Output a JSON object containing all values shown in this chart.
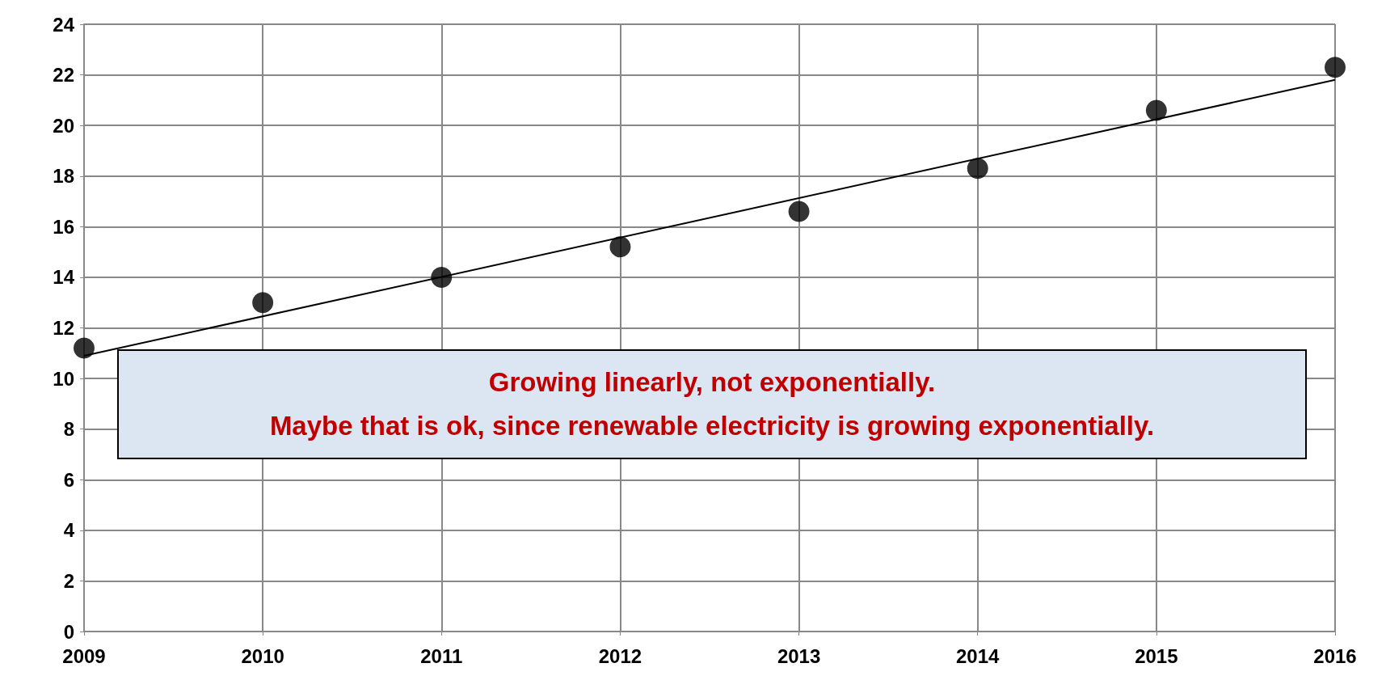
{
  "chart_data": {
    "type": "scatter",
    "x": [
      2009,
      2010,
      2011,
      2012,
      2013,
      2014,
      2015,
      2016
    ],
    "series": [
      {
        "color": "#000000",
        "marker": "circle",
        "values": [
          11.2,
          13.0,
          14.0,
          15.2,
          16.6,
          18.3,
          20.6,
          22.3
        ]
      },
      {
        "type": "line",
        "color": "#000000",
        "marker": "none",
        "x": [
          2009,
          2016
        ],
        "values": [
          10.9,
          21.8
        ]
      }
    ],
    "xlim": [
      2009,
      2016
    ],
    "xticks": [
      2009,
      2010,
      2011,
      2012,
      2013,
      2014,
      2015,
      2016
    ],
    "ylim": [
      0,
      24
    ],
    "yticks": [
      0,
      2,
      4,
      6,
      8,
      10,
      12,
      14,
      16,
      18,
      20,
      22,
      24
    ],
    "grid": true,
    "annotations": [
      "Growing linearly, not exponentially.",
      "Maybe that is ok, since renewable electricity is growing exponentially."
    ]
  }
}
